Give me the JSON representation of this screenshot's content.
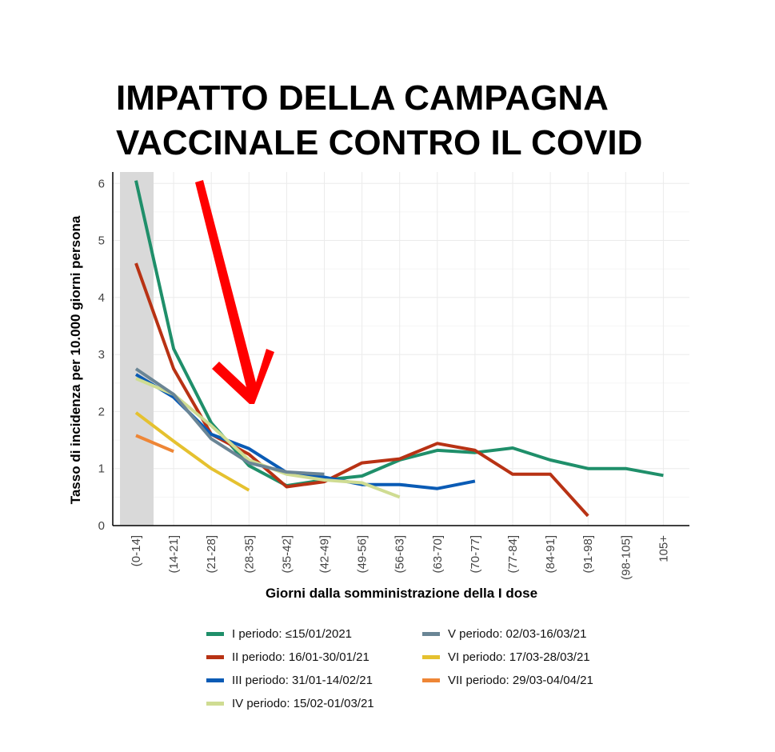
{
  "title": {
    "line1": "IMPATTO DELLA CAMPAGNA",
    "line2": "VACCINALE CONTRO IL COVID"
  },
  "chart_data": {
    "type": "line",
    "xlabel": "Giorni dalla somministrazione della I dose",
    "ylabel": "Tasso di incidenza per 10.000 giorni persona",
    "ylim": [
      0,
      6.2
    ],
    "yticks": [
      "0",
      "1",
      "2",
      "3",
      "4",
      "5",
      "6"
    ],
    "categories": [
      "(0-14]",
      "(14-21]",
      "(21-28]",
      "(28-35]",
      "(35-42]",
      "(42-49]",
      "(49-56]",
      "(56-63]",
      "(63-70]",
      "(70-77]",
      "(77-84]",
      "(84-91]",
      "(91-98]",
      "(98-105]",
      "105+"
    ],
    "shaded_category": "(0-14]",
    "series": [
      {
        "name": "I periodo: ≤15/01/2021",
        "color": "#1f8f6a",
        "values": [
          6.05,
          3.1,
          1.8,
          1.05,
          0.7,
          0.8,
          0.87,
          1.15,
          1.32,
          1.28,
          1.36,
          1.15,
          1.0,
          1.0,
          0.88
        ]
      },
      {
        "name": "II periodo: 16/01-30/01/21",
        "color": "#b83214",
        "values": [
          4.6,
          2.75,
          1.6,
          1.25,
          0.68,
          0.77,
          1.1,
          1.17,
          1.44,
          1.32,
          0.9,
          0.9,
          0.17,
          null,
          null
        ]
      },
      {
        "name": "III periodo: 31/01-14/02/21",
        "color": "#0a5bb5",
        "values": [
          2.65,
          2.25,
          1.6,
          1.35,
          0.93,
          0.85,
          0.72,
          0.72,
          0.65,
          0.78,
          null,
          null,
          null,
          null,
          null
        ]
      },
      {
        "name": "IV periodo: 15/02-01/03/21",
        "color": "#cfdc92",
        "values": [
          2.58,
          2.3,
          1.75,
          1.15,
          0.9,
          0.8,
          0.75,
          0.5,
          null,
          null,
          null,
          null,
          null,
          null,
          null
        ]
      },
      {
        "name": "V periodo: 02/03-16/03/21",
        "color": "#6a8595",
        "values": [
          2.75,
          2.3,
          1.52,
          1.1,
          0.94,
          0.9,
          null,
          null,
          null,
          null,
          null,
          null,
          null,
          null,
          null
        ]
      },
      {
        "name": "VI periodo: 17/03-28/03/21",
        "color": "#e5c12f",
        "values": [
          1.98,
          1.48,
          1.0,
          0.62,
          null,
          null,
          null,
          null,
          null,
          null,
          null,
          null,
          null,
          null,
          null
        ]
      },
      {
        "name": "VII periodo: 29/03-04/04/21",
        "color": "#ee8636",
        "values": [
          1.58,
          1.3,
          null,
          null,
          null,
          null,
          null,
          null,
          null,
          null,
          null,
          null,
          null,
          null,
          null
        ]
      }
    ],
    "annotation": "red-arrow-pointing-down"
  }
}
